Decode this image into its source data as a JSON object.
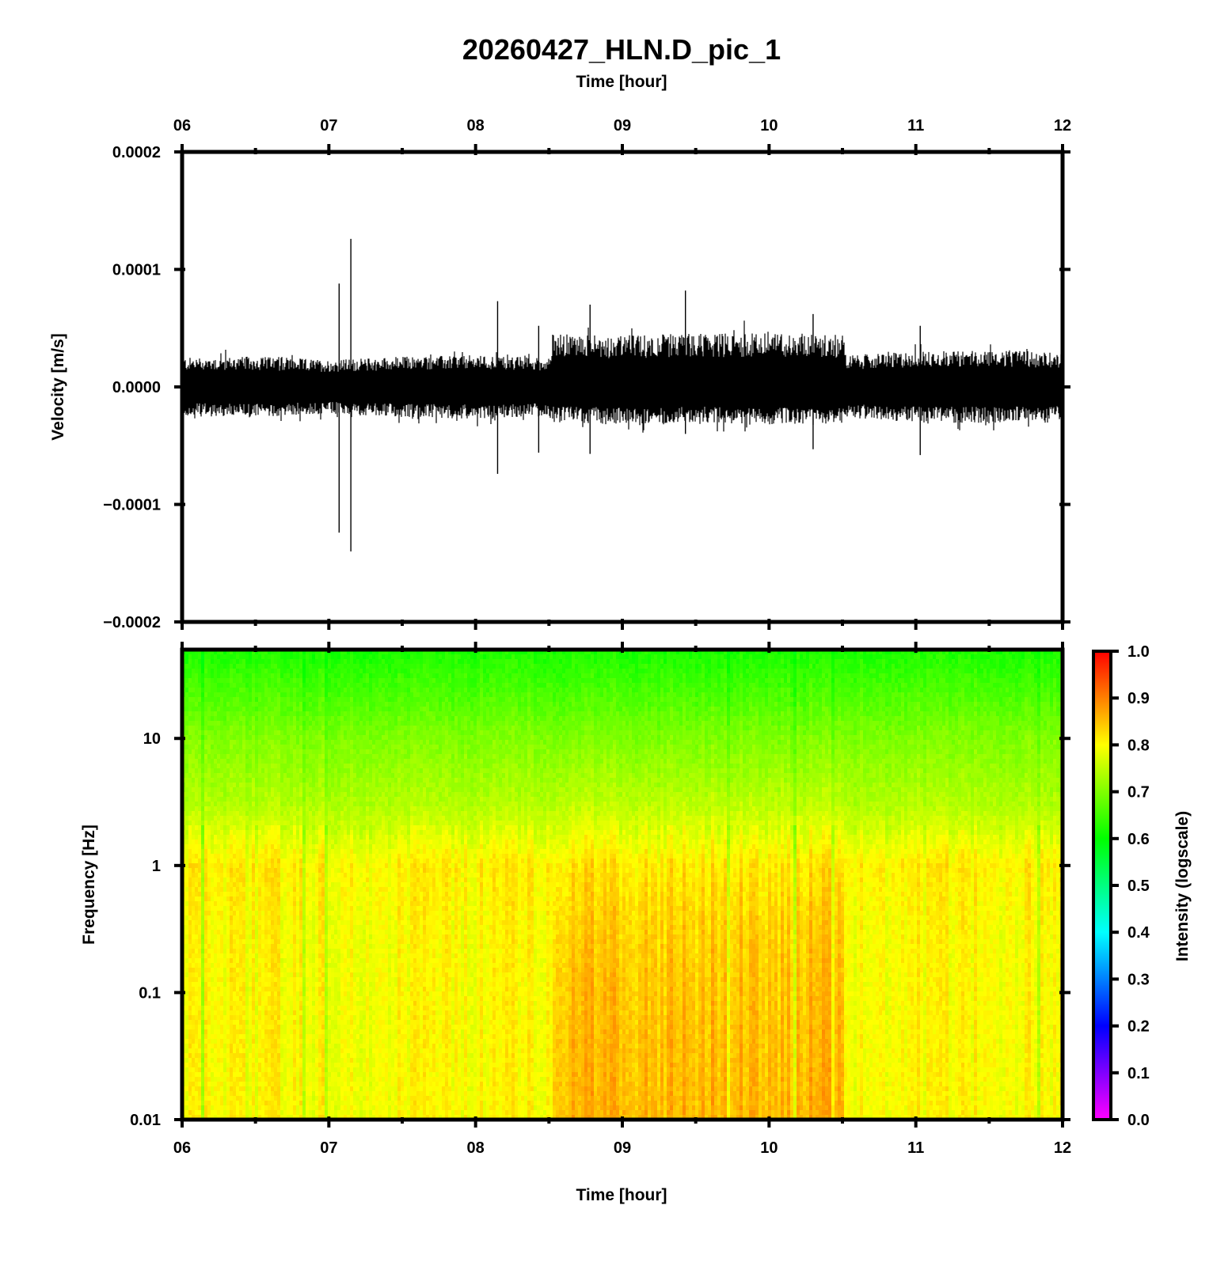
{
  "title": "20260427_HLN.D_pic_1",
  "top_xlabel": "Time [hour]",
  "bottom_xlabel": "Time [hour]",
  "chart_data": [
    {
      "type": "line",
      "panel": "waveform",
      "ylabel": "Velocity [m/s]",
      "xlim": [
        6,
        12
      ],
      "ylim": [
        -0.0002,
        0.0002
      ],
      "x_ticks": [
        "06",
        "07",
        "08",
        "09",
        "10",
        "11",
        "12"
      ],
      "y_ticks": [
        "0.0002",
        "0.0001",
        "0.0000",
        "−0.0001",
        "−0.0002"
      ],
      "amplitude_envelope": {
        "x": [
          6.0,
          6.5,
          7.0,
          7.5,
          8.0,
          8.5,
          8.52,
          9.0,
          9.5,
          10.0,
          10.5,
          10.52,
          11.0,
          11.5,
          12.0
        ],
        "upper": [
          2.5e-05,
          2.6e-05,
          2.3e-05,
          2.6e-05,
          2.7e-05,
          2.5e-05,
          4.5e-05,
          4.4e-05,
          4.6e-05,
          4.6e-05,
          4.5e-05,
          2.7e-05,
          3e-05,
          3.2e-05,
          2.9e-05
        ],
        "lower": [
          -2.5e-05,
          -2.6e-05,
          -2.3e-05,
          -2.6e-05,
          -2.7e-05,
          -2.5e-05,
          -3e-05,
          -3.2e-05,
          -3e-05,
          -3.2e-05,
          -3.1e-05,
          -2.6e-05,
          -3e-05,
          -3.1e-05,
          -2.9e-05
        ]
      },
      "spikes": [
        {
          "x": 7.07,
          "max": 8.8e-05,
          "min": -0.000124
        },
        {
          "x": 7.15,
          "max": 0.000126,
          "min": -0.00014
        },
        {
          "x": 8.15,
          "max": 7.3e-05,
          "min": -7.4e-05
        },
        {
          "x": 8.43,
          "max": 5.2e-05,
          "min": -5.6e-05
        },
        {
          "x": 8.78,
          "max": 7e-05,
          "min": -5.7e-05
        },
        {
          "x": 9.43,
          "max": 8.2e-05,
          "min": -4e-05
        },
        {
          "x": 10.3,
          "max": 6.2e-05,
          "min": -5.3e-05
        },
        {
          "x": 11.03,
          "max": 5.2e-05,
          "min": -5.8e-05
        }
      ]
    },
    {
      "type": "heatmap",
      "panel": "spectrogram",
      "ylabel": "Frequency [Hz]",
      "xlabel": "Time [hour]",
      "xlim": [
        6,
        12
      ],
      "ylim": [
        0.01,
        50
      ],
      "yscale": "log",
      "x_ticks": [
        "06",
        "07",
        "08",
        "09",
        "10",
        "11",
        "12"
      ],
      "y_ticks": [
        "10",
        "1",
        "0.1",
        "0.01"
      ],
      "colorbar": {
        "label": "Intensity (logscale)",
        "range": [
          0,
          1
        ],
        "ticks": [
          "1.0",
          "0.9",
          "0.8",
          "0.7",
          "0.6",
          "0.5",
          "0.4",
          "0.3",
          "0.2",
          "0.1",
          "0.0"
        ],
        "colors": [
          "#ff00ff",
          "#8000ff",
          "#0000ff",
          "#0080ff",
          "#00ffff",
          "#00ff80",
          "#00ff00",
          "#80ff00",
          "#ffff00",
          "#ff8000",
          "#ff0000"
        ]
      },
      "intensity_profile": {
        "frequency_hz": [
          50,
          10,
          3,
          1,
          0.3,
          0.1,
          0.01
        ],
        "quiet_period": [
          0.62,
          0.7,
          0.74,
          0.81,
          0.8,
          0.8,
          0.8
        ],
        "active_period_8.52_to_10.52": [
          0.62,
          0.7,
          0.75,
          0.82,
          0.84,
          0.85,
          0.86
        ]
      }
    }
  ]
}
